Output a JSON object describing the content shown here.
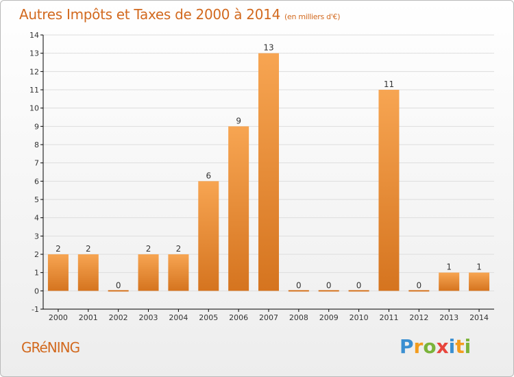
{
  "page_title": "Autres Impôts et Taxes de 2000 à 2014",
  "page_unit": "(en milliers d'€)",
  "commune": "GRéNING",
  "logo": {
    "text": "Proxiti",
    "letters": [
      {
        "ch": "P",
        "color": "#3a8fd1"
      },
      {
        "ch": "r",
        "color": "#f39c1e"
      },
      {
        "ch": "o",
        "color": "#7bb33a"
      },
      {
        "ch": "x",
        "color": "#e8453c"
      },
      {
        "ch": "i",
        "color": "#3a8fd1"
      },
      {
        "ch": "t",
        "color": "#f39c1e"
      },
      {
        "ch": "i",
        "color": "#7bb33a"
      }
    ]
  },
  "colors": {
    "accent": "#d2691e",
    "bar_light": "#f7a552",
    "bar_dark": "#d5741f",
    "axis": "#000000",
    "grid": "#dddddd"
  },
  "chart_data": {
    "type": "bar",
    "title": "Autres Impôts et Taxes de 2000 à 2014",
    "subtitle": "(en milliers d'€)",
    "categories": [
      "2000",
      "2001",
      "2002",
      "2003",
      "2004",
      "2005",
      "2006",
      "2007",
      "2008",
      "2009",
      "2010",
      "2011",
      "2012",
      "2013",
      "2014"
    ],
    "values": [
      2,
      2,
      0,
      2,
      2,
      6,
      9,
      13,
      0,
      0,
      0,
      11,
      0,
      1,
      1
    ],
    "ylim": [
      -1,
      14
    ],
    "yticks": [
      "-1",
      "0",
      "1",
      "2",
      "3",
      "4",
      "5",
      "6",
      "7",
      "8",
      "9",
      "10",
      "11",
      "12",
      "13",
      "14"
    ],
    "grid": true
  }
}
